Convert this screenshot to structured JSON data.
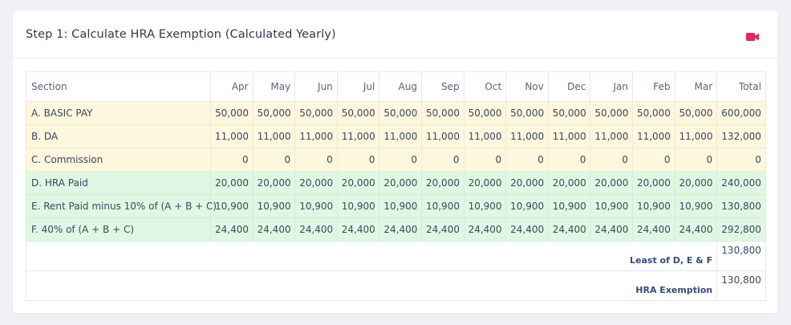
{
  "header": {
    "title": "Step 1: Calculate HRA Exemption (Calculated Yearly)",
    "video_icon": "video-camera-icon",
    "video_icon_color": "#e8255a"
  },
  "colors": {
    "yellow_row": "#fdf7de",
    "green_row": "#e0f8e3"
  },
  "table": {
    "columns": [
      "Section",
      "Apr",
      "May",
      "Jun",
      "Jul",
      "Aug",
      "Sep",
      "Oct",
      "Nov",
      "Dec",
      "Jan",
      "Feb",
      "Mar",
      "Total"
    ],
    "rows": [
      {
        "label": "A. BASIC PAY",
        "style": "yellow",
        "values": [
          "50,000",
          "50,000",
          "50,000",
          "50,000",
          "50,000",
          "50,000",
          "50,000",
          "50,000",
          "50,000",
          "50,000",
          "50,000",
          "50,000",
          "600,000"
        ]
      },
      {
        "label": "B. DA",
        "style": "yellow",
        "values": [
          "11,000",
          "11,000",
          "11,000",
          "11,000",
          "11,000",
          "11,000",
          "11,000",
          "11,000",
          "11,000",
          "11,000",
          "11,000",
          "11,000",
          "132,000"
        ]
      },
      {
        "label": "C. Commission",
        "style": "yellow",
        "values": [
          "0",
          "0",
          "0",
          "0",
          "0",
          "0",
          "0",
          "0",
          "0",
          "0",
          "0",
          "0",
          "0"
        ]
      },
      {
        "label": "D. HRA Paid",
        "style": "green",
        "values": [
          "20,000",
          "20,000",
          "20,000",
          "20,000",
          "20,000",
          "20,000",
          "20,000",
          "20,000",
          "20,000",
          "20,000",
          "20,000",
          "20,000",
          "240,000"
        ]
      },
      {
        "label": "E. Rent Paid minus 10% of (A + B + C)",
        "style": "green",
        "values": [
          "10,900",
          "10,900",
          "10,900",
          "10,900",
          "10,900",
          "10,900",
          "10,900",
          "10,900",
          "10,900",
          "10,900",
          "10,900",
          "10,900",
          "130,800"
        ]
      },
      {
        "label": "F. 40% of (A + B + C)",
        "style": "green",
        "values": [
          "24,400",
          "24,400",
          "24,400",
          "24,400",
          "24,400",
          "24,400",
          "24,400",
          "24,400",
          "24,400",
          "24,400",
          "24,400",
          "24,400",
          "292,800"
        ]
      }
    ],
    "summary": [
      {
        "label": "Least of D, E & F",
        "value": "130,800"
      },
      {
        "label": "HRA Exemption",
        "value": "130,800"
      }
    ]
  }
}
